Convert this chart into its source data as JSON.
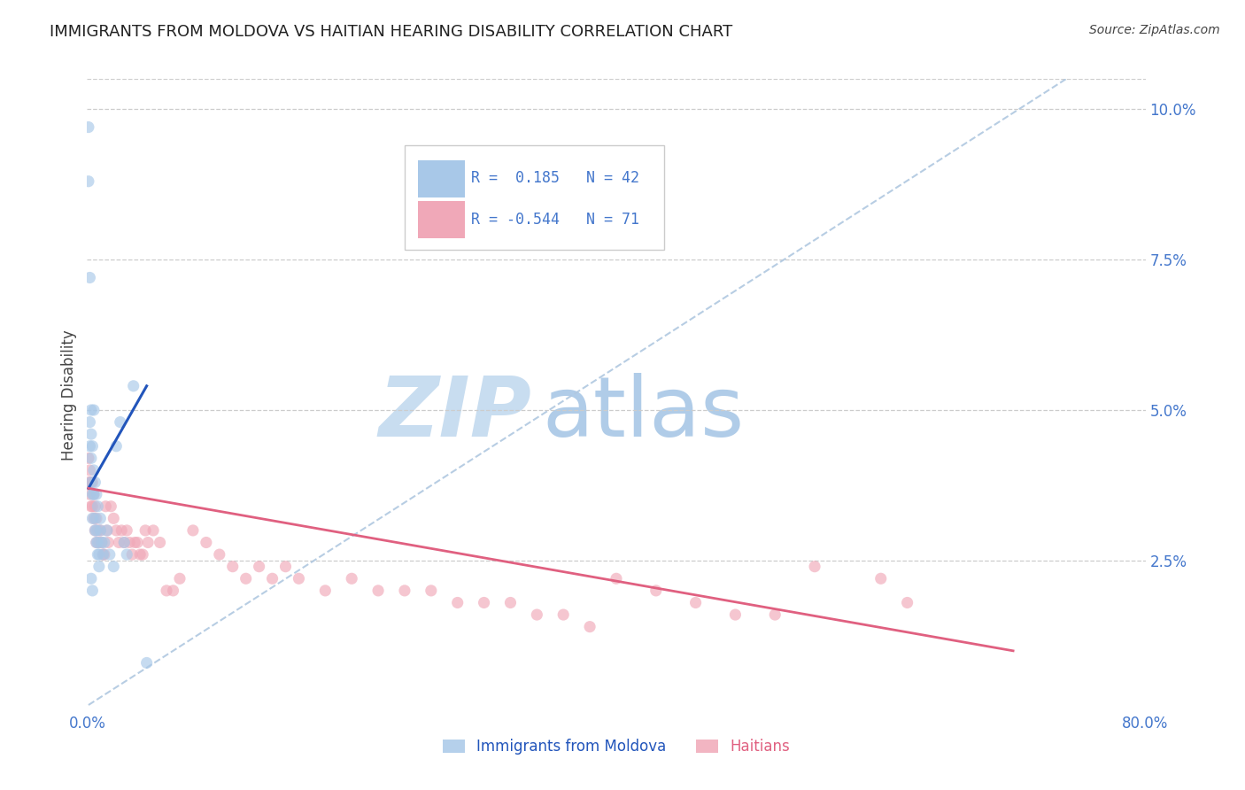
{
  "title": "IMMIGRANTS FROM MOLDOVA VS HAITIAN HEARING DISABILITY CORRELATION CHART",
  "source": "Source: ZipAtlas.com",
  "ylabel": "Hearing Disability",
  "xlim": [
    0.0,
    0.8
  ],
  "ylim": [
    0.0,
    0.105
  ],
  "yticks_right": [
    0.025,
    0.05,
    0.075,
    0.1
  ],
  "yticklabels_right": [
    "2.5%",
    "5.0%",
    "7.5%",
    "10.0%"
  ],
  "legend_label1": "Immigrants from Moldova",
  "legend_label2": "Haitians",
  "R1": "0.185",
  "N1": "42",
  "R2": "-0.544",
  "N2": "71",
  "blue_color": "#a8c8e8",
  "pink_color": "#f0a8b8",
  "blue_line_color": "#2255bb",
  "pink_line_color": "#e06080",
  "diag_color": "#b0c8e0",
  "scatter_alpha": 0.65,
  "marker_size": 90,
  "blue_points_x": [
    0.001,
    0.001,
    0.002,
    0.002,
    0.003,
    0.003,
    0.004,
    0.004,
    0.005,
    0.005,
    0.006,
    0.006,
    0.007,
    0.007,
    0.008,
    0.008,
    0.009,
    0.009,
    0.01,
    0.01,
    0.011,
    0.012,
    0.013,
    0.015,
    0.017,
    0.02,
    0.022,
    0.025,
    0.028,
    0.03,
    0.002,
    0.003,
    0.003,
    0.004,
    0.005,
    0.006,
    0.007,
    0.008,
    0.003,
    0.004,
    0.035,
    0.045
  ],
  "blue_points_y": [
    0.097,
    0.088,
    0.048,
    0.044,
    0.042,
    0.038,
    0.036,
    0.032,
    0.05,
    0.036,
    0.032,
    0.03,
    0.03,
    0.028,
    0.028,
    0.026,
    0.026,
    0.024,
    0.032,
    0.03,
    0.028,
    0.026,
    0.028,
    0.03,
    0.026,
    0.024,
    0.044,
    0.048,
    0.028,
    0.026,
    0.072,
    0.05,
    0.046,
    0.044,
    0.04,
    0.038,
    0.036,
    0.034,
    0.022,
    0.02,
    0.054,
    0.008
  ],
  "pink_points_x": [
    0.001,
    0.001,
    0.002,
    0.002,
    0.003,
    0.003,
    0.004,
    0.004,
    0.005,
    0.005,
    0.006,
    0.006,
    0.007,
    0.007,
    0.008,
    0.009,
    0.01,
    0.011,
    0.012,
    0.013,
    0.014,
    0.015,
    0.016,
    0.018,
    0.02,
    0.022,
    0.024,
    0.026,
    0.028,
    0.03,
    0.032,
    0.034,
    0.036,
    0.038,
    0.04,
    0.042,
    0.044,
    0.046,
    0.05,
    0.055,
    0.06,
    0.065,
    0.07,
    0.08,
    0.09,
    0.1,
    0.11,
    0.12,
    0.13,
    0.14,
    0.15,
    0.16,
    0.18,
    0.2,
    0.22,
    0.24,
    0.26,
    0.28,
    0.3,
    0.32,
    0.34,
    0.36,
    0.38,
    0.4,
    0.43,
    0.46,
    0.49,
    0.52,
    0.55,
    0.6,
    0.62
  ],
  "pink_points_y": [
    0.042,
    0.038,
    0.04,
    0.036,
    0.038,
    0.034,
    0.038,
    0.034,
    0.036,
    0.032,
    0.034,
    0.03,
    0.032,
    0.028,
    0.03,
    0.028,
    0.03,
    0.028,
    0.026,
    0.026,
    0.034,
    0.03,
    0.028,
    0.034,
    0.032,
    0.03,
    0.028,
    0.03,
    0.028,
    0.03,
    0.028,
    0.026,
    0.028,
    0.028,
    0.026,
    0.026,
    0.03,
    0.028,
    0.03,
    0.028,
    0.02,
    0.02,
    0.022,
    0.03,
    0.028,
    0.026,
    0.024,
    0.022,
    0.024,
    0.022,
    0.024,
    0.022,
    0.02,
    0.022,
    0.02,
    0.02,
    0.02,
    0.018,
    0.018,
    0.018,
    0.016,
    0.016,
    0.014,
    0.022,
    0.02,
    0.018,
    0.016,
    0.016,
    0.024,
    0.022,
    0.018
  ],
  "background_color": "#ffffff",
  "grid_color": "#cccccc",
  "title_color": "#222222",
  "axis_label_color": "#444444",
  "tick_color": "#4477cc",
  "watermark_zip_color": "#c8ddf0",
  "watermark_atlas_color": "#b0cce8"
}
